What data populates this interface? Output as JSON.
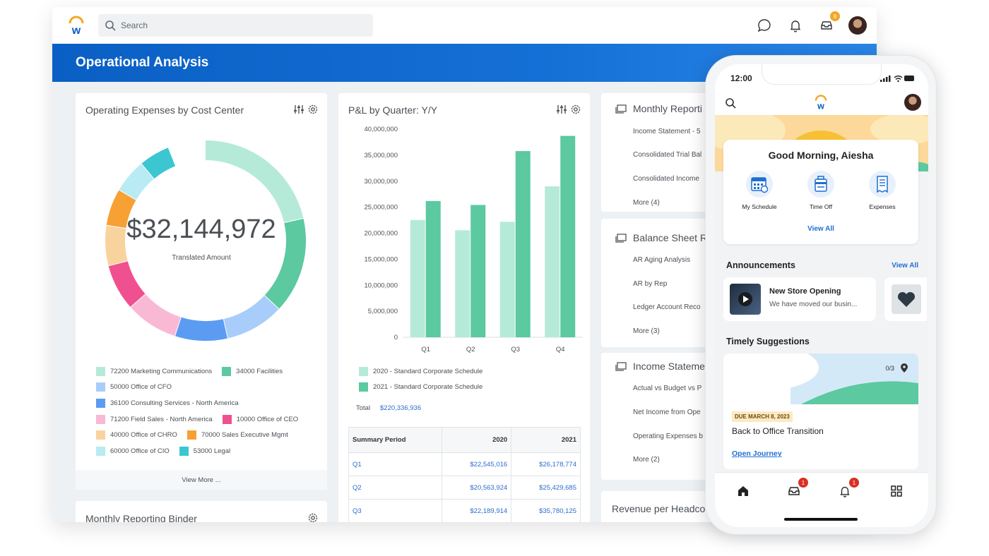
{
  "app": {
    "search_placeholder": "Search",
    "notif_count": "8",
    "page_title": "Operational Analysis"
  },
  "expenses_card": {
    "title": "Operating Expenses by Cost Center",
    "amount": "$32,144,972",
    "amount_label": "Translated Amount",
    "legend": [
      {
        "label": "72200 Marketing Communications",
        "color": "#b5ead9"
      },
      {
        "label": "34000 Facilities",
        "color": "#5cc9a0"
      },
      {
        "label": "50000 Office of CFO",
        "color": "#a8cdfb"
      },
      {
        "label": "36100 Consulting Services - North America",
        "color": "#5b9cf2"
      },
      {
        "label": "71200 Field Sales - North America",
        "color": "#f9b9d4"
      },
      {
        "label": "10000 Office of CEO",
        "color": "#f0508f"
      },
      {
        "label": "40000 Office of CHRO",
        "color": "#f9d39e"
      },
      {
        "label": "70000 Sales Executive Mgmt",
        "color": "#f7a033"
      },
      {
        "label": "60000 Office of CIO",
        "color": "#b8ebf3"
      },
      {
        "label": "53000 Legal",
        "color": "#3cc6d1"
      }
    ],
    "view_more": "View More ..."
  },
  "monthly_card": {
    "title": "Monthly Reporting Binder"
  },
  "pl_card": {
    "title": "P&L by Quarter: Y/Y",
    "total_label": "Total",
    "total_value": "$220,336,936",
    "legend": [
      {
        "label": "2020 - Standard Corporate Schedule",
        "color": "#b5ead9"
      },
      {
        "label": "2021 - Standard Corporate Schedule",
        "color": "#5cc9a0"
      }
    ],
    "table": {
      "headers": [
        "Summary Period",
        "2020",
        "2021"
      ],
      "rows": [
        [
          "Q1",
          "$22,545,016",
          "$26,178,774"
        ],
        [
          "Q2",
          "$20,563,924",
          "$25,429,685"
        ],
        [
          "Q3",
          "$22,189,914",
          "$35,780,125"
        ]
      ]
    }
  },
  "chart_data": {
    "type": "bar",
    "categories": [
      "Q1",
      "Q2",
      "Q3",
      "Q4"
    ],
    "series": [
      {
        "name": "2020 - Standard Corporate Schedule",
        "values": [
          22545016,
          20563924,
          22189914,
          29000000
        ]
      },
      {
        "name": "2021 - Standard Corporate Schedule",
        "values": [
          26178774,
          25429685,
          35780125,
          38700000
        ]
      }
    ],
    "yticks": [
      "40,000,000",
      "35,000,000",
      "30,000,000",
      "25,000,000",
      "20,000,000",
      "15,000,000",
      "10,000,000",
      "5,000,000",
      "0"
    ],
    "ylim": [
      0,
      40000000
    ],
    "colors": [
      "#b5ead9",
      "#5cc9a0"
    ],
    "legend_position": "bottom",
    "grid": false
  },
  "right_cards": {
    "monthly_reporting": {
      "title": "Monthly Reporti",
      "items": [
        "Income Statement - 5",
        "Consolidated Trial Bal",
        "Consolidated Income",
        "More (4)"
      ]
    },
    "balance_sheet": {
      "title": "Balance Sheet R",
      "items": [
        "AR Aging Analysis",
        "AR by Rep",
        "Ledger Account Reco",
        "More (3)"
      ]
    },
    "income_statement": {
      "title": "Income Stateme",
      "items": [
        "Actual vs Budget vs P",
        "Net Income from Ope",
        "Operating Expenses b",
        "More (2)"
      ]
    },
    "revenue": {
      "title": "Revenue per Headco"
    }
  },
  "phone": {
    "time": "12:00",
    "greeting": "Good Morning, Aiesha",
    "quick_actions": [
      "My Schedule",
      "Time Off",
      "Expenses"
    ],
    "view_all": "View All",
    "announcements_title": "Announcements",
    "announcements_view_all": "View All",
    "announcement": {
      "title": "New Store Opening",
      "subtitle": "We have moved our busin..."
    },
    "suggestions_title": "Timely Suggestions",
    "progress": "0/3",
    "due": "DUE MARCH 8, 2023",
    "suggestion_title": "Back to Office Transition",
    "suggestion_link": "Open Journey",
    "inbox_badge": "1",
    "notif_badge": "1"
  }
}
